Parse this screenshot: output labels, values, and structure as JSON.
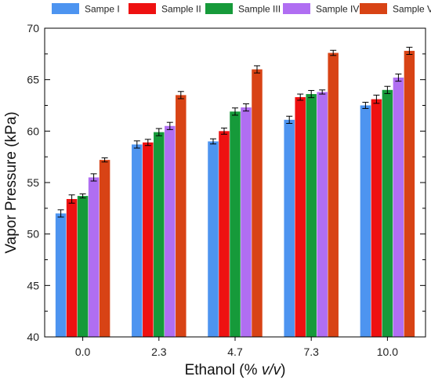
{
  "chart_data": {
    "type": "bar",
    "xlabel_prefix": "Ethanol (% ",
    "xlabel_italic": "v/v",
    "xlabel_suffix": ")",
    "ylabel": "Vapor Pressure (kPa)",
    "ylim": [
      40,
      70
    ],
    "yticks": [
      40,
      45,
      50,
      55,
      60,
      65,
      70
    ],
    "categories": [
      "0.0",
      "2.3",
      "4.7",
      "7.3",
      "10.0"
    ],
    "legend_position": "top",
    "series": [
      {
        "name": "Sampe I",
        "color": "#4d94f0",
        "values": [
          52.0,
          58.7,
          59.0,
          61.1,
          62.5
        ],
        "errors": [
          0.35,
          0.35,
          0.25,
          0.35,
          0.3
        ]
      },
      {
        "name": "Sample II",
        "color": "#ee1111",
        "values": [
          53.4,
          58.9,
          60.0,
          63.3,
          63.1
        ],
        "errors": [
          0.4,
          0.3,
          0.3,
          0.3,
          0.4
        ]
      },
      {
        "name": "Sample III",
        "color": "#169a3a",
        "values": [
          53.7,
          59.9,
          61.9,
          63.6,
          64.0
        ],
        "errors": [
          0.2,
          0.35,
          0.35,
          0.35,
          0.35
        ]
      },
      {
        "name": "Sample IV",
        "color": "#b06ef2",
        "values": [
          55.5,
          60.5,
          62.3,
          63.8,
          65.2
        ],
        "errors": [
          0.35,
          0.35,
          0.35,
          0.2,
          0.35
        ]
      },
      {
        "name": "Sample V",
        "color": "#d84315",
        "values": [
          57.2,
          63.5,
          66.0,
          67.6,
          67.8
        ],
        "errors": [
          0.2,
          0.35,
          0.35,
          0.25,
          0.35
        ]
      }
    ]
  }
}
